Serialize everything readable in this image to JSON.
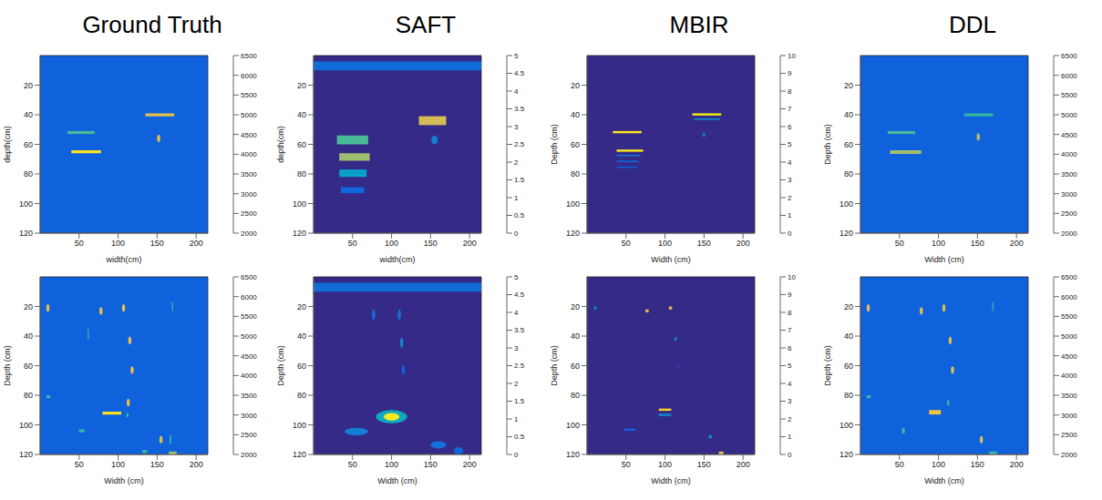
{
  "chart_data": [
    {
      "type": "heatmap",
      "title": "Ground Truth",
      "x_label": "width(cm)",
      "y_label": "depth(cm)",
      "xlim": [
        0,
        215
      ],
      "xticks": [
        50,
        100,
        150,
        200
      ],
      "ylim": [
        0,
        120
      ],
      "yticks": [
        20,
        40,
        60,
        80,
        100,
        120
      ],
      "background": 2650,
      "cells": [
        {
          "shape": "rect",
          "x": [
            35,
            70
          ],
          "y": [
            51,
            53
          ],
          "value": 4400
        },
        {
          "shape": "rect",
          "x": [
            40,
            78
          ],
          "y": [
            64,
            66
          ],
          "value": 6200
        },
        {
          "shape": "rect",
          "x": [
            135,
            172
          ],
          "y": [
            39,
            41
          ],
          "value": 5600
        },
        {
          "shape": "ellipse",
          "x": [
            150,
            154
          ],
          "y": [
            53.5,
            58.5
          ],
          "value": 5600
        }
      ],
      "colorbar": {
        "range": [
          2000,
          6500
        ],
        "ticks": [
          2000,
          2500,
          3000,
          3500,
          4000,
          4500,
          5000,
          5500,
          6000,
          6500
        ]
      }
    },
    {
      "type": "heatmap",
      "title": "SAFT",
      "x_label": "width(cm)",
      "y_label": "depth(cm)",
      "xlim": [
        0,
        215
      ],
      "xticks": [
        50,
        100,
        150,
        200
      ],
      "ylim": [
        0,
        120
      ],
      "yticks": [
        20,
        40,
        60,
        80,
        100,
        120
      ],
      "background": 0,
      "cells": [
        {
          "shape": "rect",
          "x": [
            0,
            215
          ],
          "y": [
            4,
            10
          ],
          "value": 0.9
        },
        {
          "shape": "rect",
          "x": [
            30,
            70
          ],
          "y": [
            54,
            60
          ],
          "value": 2.7
        },
        {
          "shape": "rect",
          "x": [
            33,
            72
          ],
          "y": [
            66,
            71
          ],
          "value": 3.3
        },
        {
          "shape": "rect",
          "x": [
            33,
            68
          ],
          "y": [
            77,
            82
          ],
          "value": 1.8
        },
        {
          "shape": "rect",
          "x": [
            35,
            65
          ],
          "y": [
            89,
            93
          ],
          "value": 0.8
        },
        {
          "shape": "rect",
          "x": [
            135,
            170
          ],
          "y": [
            41,
            47
          ],
          "value": 3.8
        },
        {
          "shape": "ellipse",
          "x": [
            151,
            159
          ],
          "y": [
            54,
            60
          ],
          "value": 1.2
        }
      ],
      "colorbar": {
        "range": [
          0,
          5
        ],
        "ticks": [
          0,
          0.5,
          1,
          1.5,
          2,
          2.5,
          3,
          3.5,
          4,
          4.5,
          5
        ]
      }
    },
    {
      "type": "heatmap",
      "title": "MBIR",
      "x_label": "Width (cm)",
      "y_label": "Depth (cm)",
      "xlim": [
        0,
        215
      ],
      "xticks": [
        50,
        100,
        150,
        200
      ],
      "ylim": [
        0,
        120
      ],
      "yticks": [
        20,
        40,
        60,
        80,
        100,
        120
      ],
      "background": 0,
      "cells": [
        {
          "shape": "rect",
          "x": [
            33,
            70
          ],
          "y": [
            51,
            52.5
          ],
          "value": 9.5
        },
        {
          "shape": "rect",
          "x": [
            38,
            72
          ],
          "y": [
            63.5,
            65
          ],
          "value": 9.5
        },
        {
          "shape": "rect",
          "x": [
            38,
            68
          ],
          "y": [
            67,
            68
          ],
          "value": 2
        },
        {
          "shape": "rect",
          "x": [
            38,
            66
          ],
          "y": [
            71,
            72
          ],
          "value": 1.6
        },
        {
          "shape": "rect",
          "x": [
            38,
            64
          ],
          "y": [
            75,
            76
          ],
          "value": 1.3
        },
        {
          "shape": "rect",
          "x": [
            135,
            172
          ],
          "y": [
            39,
            40.5
          ],
          "value": 10
        },
        {
          "shape": "rect",
          "x": [
            137,
            170
          ],
          "y": [
            42.5,
            43.5
          ],
          "value": 3
        },
        {
          "shape": "ellipse",
          "x": [
            148,
            152
          ],
          "y": [
            52,
            55
          ],
          "value": 2
        }
      ],
      "colorbar": {
        "range": [
          0,
          10
        ],
        "ticks": [
          0,
          1,
          2,
          3,
          4,
          5,
          6,
          7,
          8,
          9,
          10
        ]
      }
    },
    {
      "type": "heatmap",
      "title": "DDL",
      "x_label": "Width (cm)",
      "y_label": "Depth (cm)",
      "xlim": [
        0,
        215
      ],
      "xticks": [
        50,
        100,
        150,
        200
      ],
      "ylim": [
        0,
        120
      ],
      "yticks": [
        20,
        40,
        60,
        80,
        100,
        120
      ],
      "background": 2650,
      "cells": [
        {
          "shape": "rect",
          "x": [
            35,
            70
          ],
          "y": [
            51,
            53
          ],
          "value": 4400
        },
        {
          "shape": "rect",
          "x": [
            38,
            78
          ],
          "y": [
            64,
            66.5
          ],
          "value": 5000
        },
        {
          "shape": "rect",
          "x": [
            133,
            170
          ],
          "y": [
            39,
            41
          ],
          "value": 4300
        },
        {
          "shape": "ellipse",
          "x": [
            149,
            153
          ],
          "y": [
            52.5,
            57.5
          ],
          "value": 5200
        }
      ],
      "colorbar": {
        "range": [
          2000,
          6500
        ],
        "ticks": [
          2000,
          2500,
          3000,
          3500,
          4000,
          4500,
          5000,
          5500,
          6000,
          6500
        ]
      }
    },
    {
      "type": "heatmap",
      "x_label": "Width (cm)",
      "y_label": "Depth (cm)",
      "xlim": [
        0,
        215
      ],
      "xticks": [
        50,
        100,
        150,
        200
      ],
      "ylim": [
        0,
        120
      ],
      "yticks": [
        20,
        40,
        60,
        80,
        100,
        120
      ],
      "background": 2650,
      "cells": [
        {
          "shape": "ellipse",
          "x": [
            8,
            12
          ],
          "y": [
            18.5,
            23.5
          ],
          "value": 5600
        },
        {
          "shape": "ellipse",
          "x": [
            76,
            80
          ],
          "y": [
            20.5,
            25.5
          ],
          "value": 5600
        },
        {
          "shape": "ellipse",
          "x": [
            105,
            109
          ],
          "y": [
            18.5,
            23.5
          ],
          "value": 5600
        },
        {
          "shape": "ellipse",
          "x": [
            113,
            117
          ],
          "y": [
            40.5,
            45.5
          ],
          "value": 5600
        },
        {
          "shape": "ellipse",
          "x": [
            116,
            120
          ],
          "y": [
            60.5,
            65.5
          ],
          "value": 5600
        },
        {
          "shape": "ellipse",
          "x": [
            111,
            115
          ],
          "y": [
            82.5,
            87.5
          ],
          "value": 5600
        },
        {
          "shape": "ellipse",
          "x": [
            153,
            157
          ],
          "y": [
            107.5,
            112.5
          ],
          "value": 5600
        },
        {
          "shape": "rect",
          "x": [
            80,
            104
          ],
          "y": [
            91,
            93
          ],
          "value": 6200
        },
        {
          "shape": "rect",
          "x": [
            61,
            62.5
          ],
          "y": [
            35,
            42
          ],
          "value": 4300
        },
        {
          "shape": "rect",
          "x": [
            169,
            170.5
          ],
          "y": [
            17,
            23
          ],
          "value": 4300
        },
        {
          "shape": "rect",
          "x": [
            8,
            13
          ],
          "y": [
            80,
            82
          ],
          "value": 4300
        },
        {
          "shape": "rect",
          "x": [
            50,
            57
          ],
          "y": [
            103,
            105
          ],
          "value": 4300
        },
        {
          "shape": "rect",
          "x": [
            166,
            168
          ],
          "y": [
            107,
            113
          ],
          "value": 4300
        },
        {
          "shape": "rect",
          "x": [
            131,
            137
          ],
          "y": [
            117,
            119
          ],
          "value": 4300
        },
        {
          "shape": "rect",
          "x": [
            165,
            175
          ],
          "y": [
            118,
            120
          ],
          "value": 5000
        },
        {
          "shape": "ellipse",
          "x": [
            110.5,
            113.5
          ],
          "y": [
            92,
            95
          ],
          "value": 4300
        }
      ],
      "colorbar": {
        "range": [
          2000,
          6500
        ],
        "ticks": [
          2000,
          2500,
          3000,
          3500,
          4000,
          4500,
          5000,
          5500,
          6000,
          6500
        ]
      }
    },
    {
      "type": "heatmap",
      "x_label": "Width (cm)",
      "y_label": "Depth (cm)",
      "xlim": [
        0,
        215
      ],
      "xticks": [
        50,
        100,
        150,
        200
      ],
      "ylim": [
        0,
        120
      ],
      "yticks": [
        20,
        40,
        60,
        80,
        100,
        120
      ],
      "background": 0,
      "cells": [
        {
          "shape": "rect",
          "x": [
            0,
            215
          ],
          "y": [
            4,
            10
          ],
          "value": 0.9
        },
        {
          "shape": "ellipse",
          "x": [
            75,
            79
          ],
          "y": [
            22,
            29
          ],
          "value": 1
        },
        {
          "shape": "ellipse",
          "x": [
            108,
            112
          ],
          "y": [
            22,
            29
          ],
          "value": 1
        },
        {
          "shape": "ellipse",
          "x": [
            111,
            115
          ],
          "y": [
            41,
            48
          ],
          "value": 1.3
        },
        {
          "shape": "ellipse",
          "x": [
            113,
            117
          ],
          "y": [
            60,
            66
          ],
          "value": 0.8
        },
        {
          "shape": "ellipse",
          "x": [
            80,
            120
          ],
          "y": [
            90,
            99
          ],
          "value": 2
        },
        {
          "shape": "ellipse",
          "x": [
            90,
            110
          ],
          "y": [
            92,
            97
          ],
          "value": 4.8
        },
        {
          "shape": "ellipse",
          "x": [
            40,
            70
          ],
          "y": [
            102,
            107
          ],
          "value": 1.2
        },
        {
          "shape": "ellipse",
          "x": [
            150,
            170
          ],
          "y": [
            111,
            116
          ],
          "value": 1
        },
        {
          "shape": "ellipse",
          "x": [
            180,
            192
          ],
          "y": [
            115,
            120
          ],
          "value": 0.8
        }
      ],
      "colorbar": {
        "range": [
          0,
          5
        ],
        "ticks": [
          0,
          0.5,
          1,
          1.5,
          2,
          2.5,
          3,
          3.5,
          4,
          4.5,
          5
        ]
      }
    },
    {
      "type": "heatmap",
      "x_label": "Width (cm)",
      "y_label": "Depth (cm)",
      "xlim": [
        0,
        215
      ],
      "xticks": [
        50,
        100,
        150,
        200
      ],
      "ylim": [
        0,
        120
      ],
      "yticks": [
        20,
        40,
        60,
        80,
        100,
        120
      ],
      "background": 0,
      "cells": [
        {
          "shape": "rect",
          "x": [
            9,
            12
          ],
          "y": [
            20,
            22
          ],
          "value": 3
        },
        {
          "shape": "rect",
          "x": [
            75,
            79
          ],
          "y": [
            22,
            24
          ],
          "value": 8
        },
        {
          "shape": "rect",
          "x": [
            105,
            109
          ],
          "y": [
            20,
            22
          ],
          "value": 8
        },
        {
          "shape": "rect",
          "x": [
            112,
            115
          ],
          "y": [
            41,
            43
          ],
          "value": 3
        },
        {
          "shape": "rect",
          "x": [
            116,
            118
          ],
          "y": [
            59,
            61
          ],
          "value": 1
        },
        {
          "shape": "rect",
          "x": [
            92,
            108
          ],
          "y": [
            89,
            90.5
          ],
          "value": 9
        },
        {
          "shape": "rect",
          "x": [
            92,
            108
          ],
          "y": [
            92.5,
            94
          ],
          "value": 3
        },
        {
          "shape": "rect",
          "x": [
            48,
            62
          ],
          "y": [
            102.5,
            104
          ],
          "value": 1.5
        },
        {
          "shape": "rect",
          "x": [
            156,
            160
          ],
          "y": [
            107,
            109
          ],
          "value": 3
        },
        {
          "shape": "rect",
          "x": [
            169,
            175
          ],
          "y": [
            118,
            120
          ],
          "value": 8
        }
      ],
      "colorbar": {
        "range": [
          0,
          10
        ],
        "ticks": [
          0,
          1,
          2,
          3,
          4,
          5,
          6,
          7,
          8,
          9,
          10
        ]
      }
    },
    {
      "type": "heatmap",
      "x_label": "Width (cm)",
      "y_label": "Depth (cm)",
      "xlim": [
        0,
        215
      ],
      "xticks": [
        50,
        100,
        150,
        200
      ],
      "ylim": [
        0,
        120
      ],
      "yticks": [
        20,
        40,
        60,
        80,
        100,
        120
      ],
      "background": 2650,
      "cells": [
        {
          "shape": "ellipse",
          "x": [
            8,
            12
          ],
          "y": [
            18.5,
            23.5
          ],
          "value": 5500
        },
        {
          "shape": "ellipse",
          "x": [
            76,
            80
          ],
          "y": [
            20.5,
            25.5
          ],
          "value": 5500
        },
        {
          "shape": "ellipse",
          "x": [
            105,
            109
          ],
          "y": [
            18.5,
            23.5
          ],
          "value": 5500
        },
        {
          "shape": "ellipse",
          "x": [
            113,
            117
          ],
          "y": [
            40.5,
            45.5
          ],
          "value": 5500
        },
        {
          "shape": "ellipse",
          "x": [
            116,
            120
          ],
          "y": [
            60.5,
            65.5
          ],
          "value": 5500
        },
        {
          "shape": "ellipse",
          "x": [
            153,
            157
          ],
          "y": [
            107.5,
            112.5
          ],
          "value": 5500
        },
        {
          "shape": "rect",
          "x": [
            88,
            103
          ],
          "y": [
            90,
            93
          ],
          "value": 5800
        },
        {
          "shape": "rect",
          "x": [
            169,
            170.5
          ],
          "y": [
            17,
            23
          ],
          "value": 4300
        },
        {
          "shape": "rect",
          "x": [
            8,
            13
          ],
          "y": [
            80,
            82
          ],
          "value": 4300
        },
        {
          "shape": "ellipse",
          "x": [
            53,
            57
          ],
          "y": [
            102,
            106
          ],
          "value": 4300
        },
        {
          "shape": "ellipse",
          "x": [
            111,
            114
          ],
          "y": [
            83,
            87
          ],
          "value": 4300
        },
        {
          "shape": "rect",
          "x": [
            165,
            175
          ],
          "y": [
            118,
            120
          ],
          "value": 4300
        }
      ],
      "colorbar": {
        "range": [
          2000,
          6500
        ],
        "ticks": [
          2000,
          2500,
          3000,
          3500,
          4000,
          4500,
          5000,
          5500,
          6000,
          6500
        ]
      }
    }
  ]
}
